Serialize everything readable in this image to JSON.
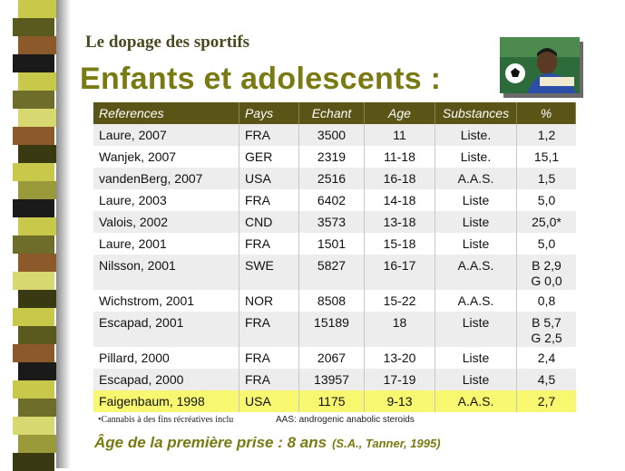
{
  "slide": {
    "subtitle": "Le dopage des sportifs",
    "title": "Enfants et adolescents :",
    "photo_alt_icon": "child-with-soccer-ball-photo"
  },
  "table": {
    "headers": {
      "ref": "References",
      "pays": "Pays",
      "ech": "Echant",
      "age": "Age",
      "sub": "Substances",
      "pct": "%"
    },
    "rows": [
      {
        "ref": "Laure, 2007",
        "pays": "FRA",
        "ech": "3500",
        "age": "11",
        "sub": "Liste.",
        "pct": "1,2"
      },
      {
        "ref": "Wanjek, 2007",
        "pays": "GER",
        "ech": "2319",
        "age": "11-18",
        "sub": "Liste.",
        "pct": "15,1"
      },
      {
        "ref": "vandenBerg, 2007",
        "pays": "USA",
        "ech": "2516",
        "age": "16-18",
        "sub": "A.A.S.",
        "pct": "1,5"
      },
      {
        "ref": "Laure, 2003",
        "pays": "FRA",
        "ech": "6402",
        "age": "14-18",
        "sub": "Liste",
        "pct": "5,0"
      },
      {
        "ref": "Valois, 2002",
        "pays": "CND",
        "ech": "3573",
        "age": "13-18",
        "sub": "Liste",
        "pct": "25,0*"
      },
      {
        "ref": "Laure, 2001",
        "pays": "FRA",
        "ech": "1501",
        "age": "15-18",
        "sub": "Liste",
        "pct": "5,0"
      },
      {
        "ref": "Nilsson, 2001",
        "pays": "SWE",
        "ech": "5827",
        "age": "16-17",
        "sub": "A.A.S.",
        "pct": "B 2,9\nG 0,0"
      },
      {
        "ref": "Wichstrom, 2001",
        "pays": "NOR",
        "ech": "8508",
        "age": "15-22",
        "sub": "A.A.S.",
        "pct": "0,8"
      },
      {
        "ref": "Escapad, 2001",
        "pays": "FRA",
        "ech": "15189",
        "age": "18",
        "sub": "Liste",
        "pct": "B 5,7\nG 2,5"
      },
      {
        "ref": "Pillard, 2000",
        "pays": "FRA",
        "ech": "2067",
        "age": "13-20",
        "sub": "Liste",
        "pct": "2,4"
      },
      {
        "ref": "Escapad, 2000",
        "pays": "FRA",
        "ech": "13957",
        "age": "17-19",
        "sub": "Liste",
        "pct": "4,5"
      },
      {
        "ref": "Faigenbaum, 1998",
        "pays": "USA",
        "ech": "1175",
        "age": "9-13",
        "sub": "A.A.S.",
        "pct": "2,7"
      }
    ]
  },
  "notes": {
    "cannabis": "•Cannabis à des fins récréatives inclu",
    "aas": "AAS: androgenic anabolic steroids"
  },
  "footer": {
    "lead": "Âge de la première prise : ",
    "age": "8 ans",
    "cite": "(S.A., Tanner, 1995)"
  },
  "colors": {
    "header_bg": "#5a5416",
    "title": "#7a7a12",
    "highlight_row": "#f8f870"
  }
}
